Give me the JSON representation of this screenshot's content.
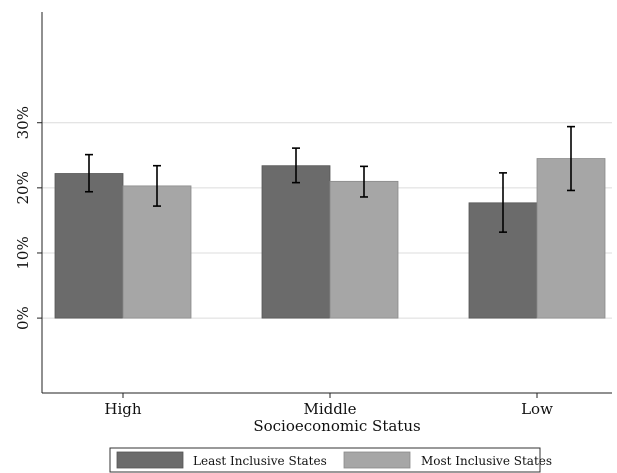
{
  "chart_data": {
    "type": "bar",
    "title": "",
    "xlabel": "Socioeconomic Status",
    "ylabel": "",
    "categories": [
      "High",
      "Middle",
      "Low"
    ],
    "y_ticks": [
      {
        "value": 0,
        "label": "0%"
      },
      {
        "value": 10,
        "label": "10%"
      },
      {
        "value": 20,
        "label": "20%"
      },
      {
        "value": 30,
        "label": "30%"
      }
    ],
    "ylim": [
      -11.5,
      47
    ],
    "grid": true,
    "legend_position": "bottom",
    "series": [
      {
        "name": "Least Inclusive States",
        "color": "#6b6b6b",
        "values": [
          22.2,
          23.4,
          17.7
        ],
        "ci_low": [
          19.4,
          20.8,
          13.2
        ],
        "ci_high": [
          25.1,
          26.1,
          22.3
        ]
      },
      {
        "name": "Most Inclusive States",
        "color": "#a6a6a6",
        "values": [
          20.3,
          21.0,
          24.5
        ],
        "ci_low": [
          17.2,
          18.6,
          19.6
        ],
        "ci_high": [
          23.4,
          23.3,
          29.4
        ]
      }
    ]
  }
}
